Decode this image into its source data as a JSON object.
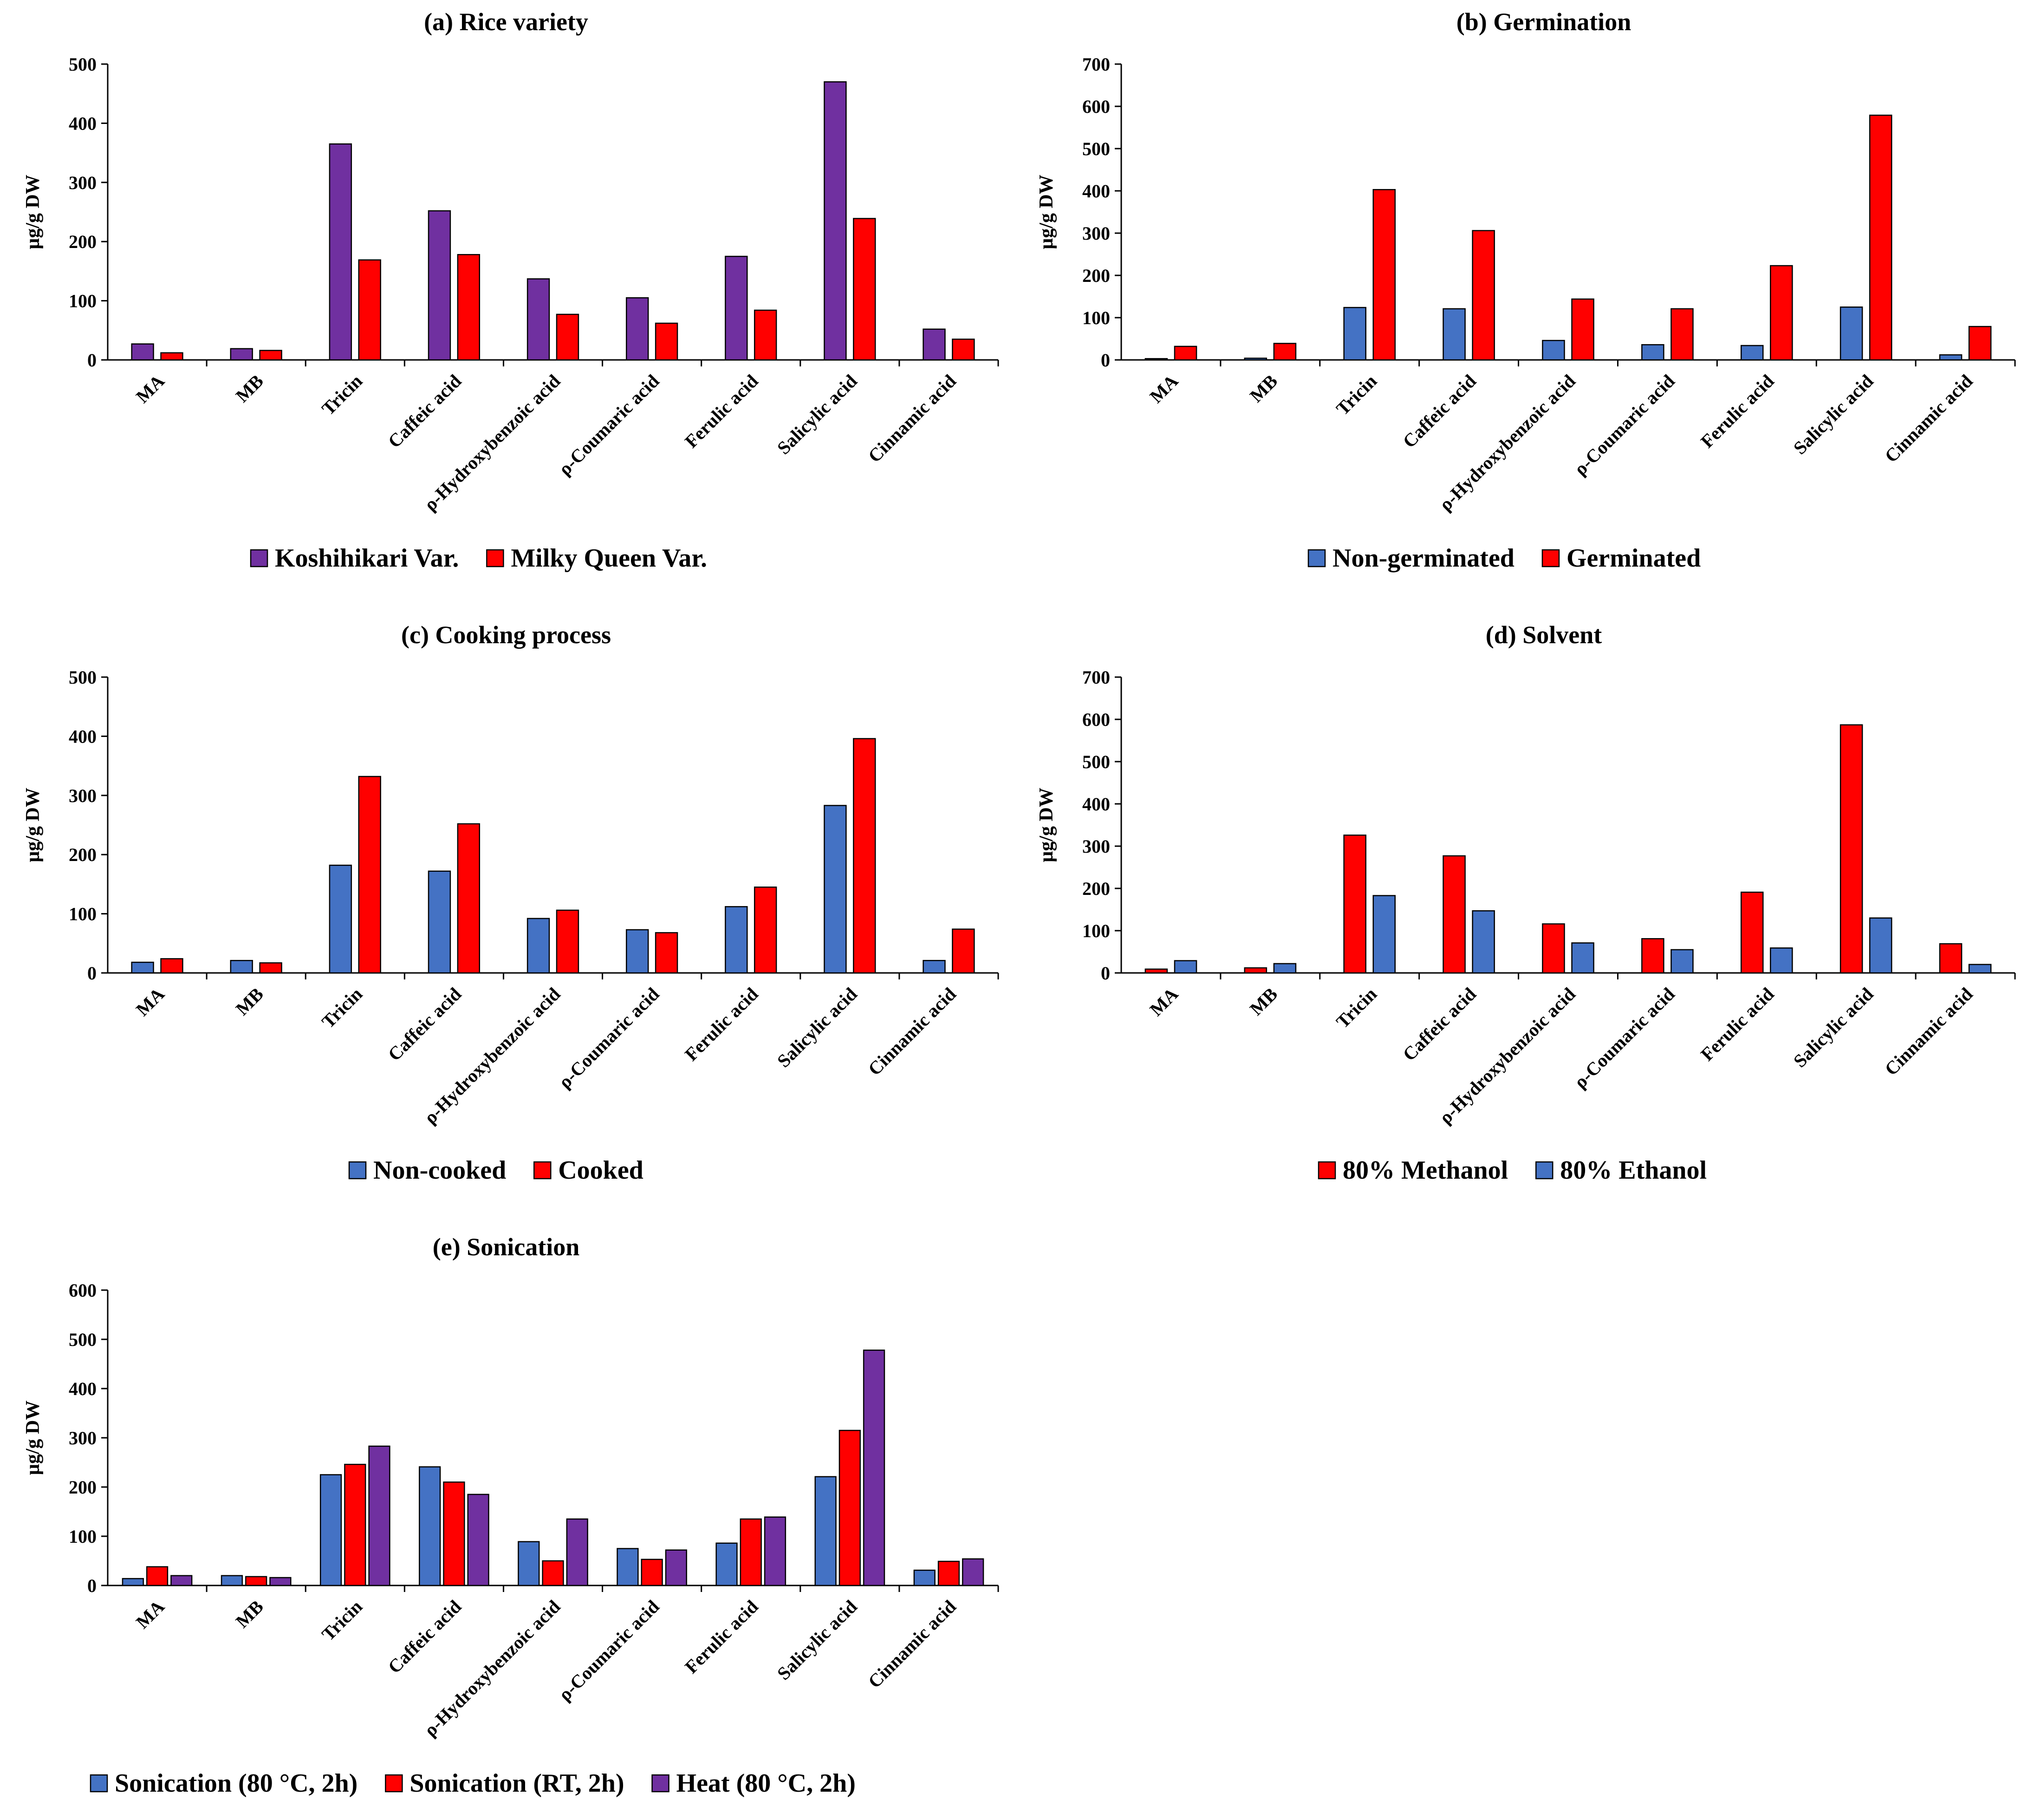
{
  "chart_data": [
    {
      "id": "a",
      "type": "bar",
      "title": "(a) Rice variety",
      "ylabel": "µg/g DW",
      "xlabel": "",
      "ylim": [
        0,
        500
      ],
      "yticks": [
        0,
        100,
        200,
        300,
        400,
        500
      ],
      "categories": [
        "MA",
        "MB",
        "Tricin",
        "Caffeic acid",
        "ρ-Hydroxybenzoic acid",
        "ρ-Coumaric acid",
        "Ferulic acid",
        "Salicylic acid",
        "Cinnamic acid"
      ],
      "series": [
        {
          "name": "Koshihikari Var.",
          "color": "#7030A0",
          "values": [
            27,
            19,
            365,
            252,
            137,
            105,
            175,
            470,
            52
          ]
        },
        {
          "name": "Milky Queen Var.",
          "color": "#FF0000",
          "values": [
            12,
            16,
            169,
            178,
            77,
            62,
            84,
            239,
            35
          ]
        }
      ]
    },
    {
      "id": "b",
      "type": "bar",
      "title": "(b) Germination",
      "ylabel": "µg/g DW",
      "xlabel": "",
      "ylim": [
        0,
        700
      ],
      "yticks": [
        0,
        100,
        200,
        300,
        400,
        500,
        600,
        700
      ],
      "categories": [
        "MA",
        "MB",
        "Tricin",
        "Caffeic acid",
        "ρ-Hydroxybenzoic acid",
        "ρ-Coumaric acid",
        "Ferulic acid",
        "Salicylic acid",
        "Cinnamic acid"
      ],
      "series": [
        {
          "name": "Non-germinated",
          "color": "#4472C4",
          "values": [
            3,
            4,
            124,
            121,
            46,
            36,
            34,
            125,
            12
          ]
        },
        {
          "name": "Germinated",
          "color": "#FF0000",
          "values": [
            32,
            39,
            403,
            306,
            144,
            121,
            223,
            579,
            79
          ]
        }
      ]
    },
    {
      "id": "c",
      "type": "bar",
      "title": "(c) Cooking process",
      "ylabel": "µg/g DW",
      "xlabel": "",
      "ylim": [
        0,
        500
      ],
      "yticks": [
        0,
        100,
        200,
        300,
        400,
        500
      ],
      "categories": [
        "MA",
        "MB",
        "Tricin",
        "Caffeic acid",
        "ρ-Hydroxybenzoic acid",
        "ρ-Coumaric acid",
        "Ferulic acid",
        "Salicylic acid",
        "Cinnamic acid"
      ],
      "series": [
        {
          "name": "Non-cooked",
          "color": "#4472C4",
          "values": [
            18,
            21,
            182,
            172,
            92,
            73,
            112,
            283,
            21
          ]
        },
        {
          "name": "Cooked",
          "color": "#FF0000",
          "values": [
            24,
            17,
            332,
            252,
            106,
            68,
            145,
            396,
            74
          ]
        }
      ]
    },
    {
      "id": "d",
      "type": "bar",
      "title": "(d) Solvent",
      "ylabel": "µg/g DW",
      "xlabel": "",
      "ylim": [
        0,
        700
      ],
      "yticks": [
        0,
        100,
        200,
        300,
        400,
        500,
        600,
        700
      ],
      "categories": [
        "MA",
        "MB",
        "Tricin",
        "Caffeic acid",
        "ρ-Hydroxybenzoic acid",
        "ρ-Coumaric acid",
        "Ferulic acid",
        "Salicylic acid",
        "Cinnamic acid"
      ],
      "series": [
        {
          "name": "80% Methanol",
          "color": "#FF0000",
          "values": [
            9,
            12,
            326,
            277,
            116,
            81,
            191,
            587,
            69
          ]
        },
        {
          "name": "80% Ethanol",
          "color": "#4472C4",
          "values": [
            29,
            22,
            183,
            147,
            71,
            55,
            59,
            130,
            20
          ]
        }
      ]
    },
    {
      "id": "e",
      "type": "bar",
      "title": "(e) Sonication",
      "ylabel": "µg/g DW",
      "xlabel": "",
      "ylim": [
        0,
        600
      ],
      "yticks": [
        0,
        100,
        200,
        300,
        400,
        500,
        600
      ],
      "categories": [
        "MA",
        "MB",
        "Tricin",
        "Caffeic acid",
        "ρ-Hydroxybenzoic acid",
        "ρ-Coumaric acid",
        "Ferulic acid",
        "Salicylic acid",
        "Cinnamic acid"
      ],
      "series": [
        {
          "name": "Sonication (80 °C, 2h)",
          "color": "#4472C4",
          "values": [
            14,
            20,
            225,
            241,
            89,
            75,
            86,
            221,
            31
          ]
        },
        {
          "name": "Sonication (RT, 2h)",
          "color": "#FF0000",
          "values": [
            38,
            18,
            246,
            210,
            50,
            53,
            135,
            315,
            49
          ]
        },
        {
          "name": "Heat (80 °C, 2h)",
          "color": "#7030A0",
          "values": [
            20,
            16,
            283,
            185,
            135,
            72,
            139,
            478,
            54
          ]
        }
      ]
    }
  ]
}
